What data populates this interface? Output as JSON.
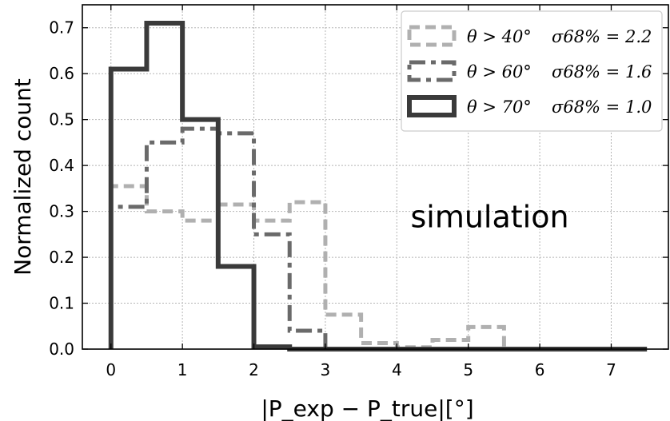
{
  "chart_data": {
    "type": "histogram-step",
    "xlabel": "|P_exp − P_true|[°]",
    "ylabel": "Normalized count",
    "xlim": [
      -0.4,
      7.8
    ],
    "ylim": [
      0.0,
      0.75
    ],
    "xticks": [
      0,
      1,
      2,
      3,
      4,
      5,
      6,
      7
    ],
    "yticks": [
      0.0,
      0.1,
      0.2,
      0.3,
      0.4,
      0.5,
      0.6,
      0.7
    ],
    "xtick_labels": [
      "0",
      "1",
      "2",
      "3",
      "4",
      "5",
      "6",
      "7"
    ],
    "ytick_labels": [
      "0.0",
      "0.1",
      "0.2",
      "0.3",
      "0.4",
      "0.5",
      "0.6",
      "0.7"
    ],
    "grid": true,
    "legend_position": "top-right",
    "bin_edges": [
      0,
      0.5,
      1,
      1.5,
      2,
      2.5,
      3,
      3.5,
      4,
      4.5,
      5,
      5.5,
      6,
      6.5,
      7,
      7.5
    ],
    "series": [
      {
        "name": "θ > 40°",
        "sigma": "σ68% = 2.2",
        "color": "#b0b0b0",
        "style": "dashed",
        "values": [
          0.355,
          0.3,
          0.28,
          0.315,
          0.28,
          0.32,
          0.075,
          0.013,
          0.004,
          0.02,
          0.048,
          0.0,
          0.0,
          0.0,
          0.0
        ]
      },
      {
        "name": "θ > 60°",
        "sigma": "σ68% = 1.6",
        "color": "#6a6a6a",
        "style": "dashdot",
        "values": [
          0.31,
          0.45,
          0.48,
          0.47,
          0.25,
          0.04,
          0.0,
          0.0,
          0.0,
          0.0,
          0.0,
          0.0,
          0.0,
          0.0,
          0.0
        ]
      },
      {
        "name": "θ > 70°",
        "sigma": "σ68% = 1.0",
        "color": "#3a3a3a",
        "style": "solid",
        "values": [
          0.61,
          0.71,
          0.5,
          0.18,
          0.005,
          0.0,
          0.0,
          0.0,
          0.0,
          0.0,
          0.0,
          0.0,
          0.0,
          0.0,
          0.0
        ]
      }
    ],
    "annotation": "simulation"
  }
}
